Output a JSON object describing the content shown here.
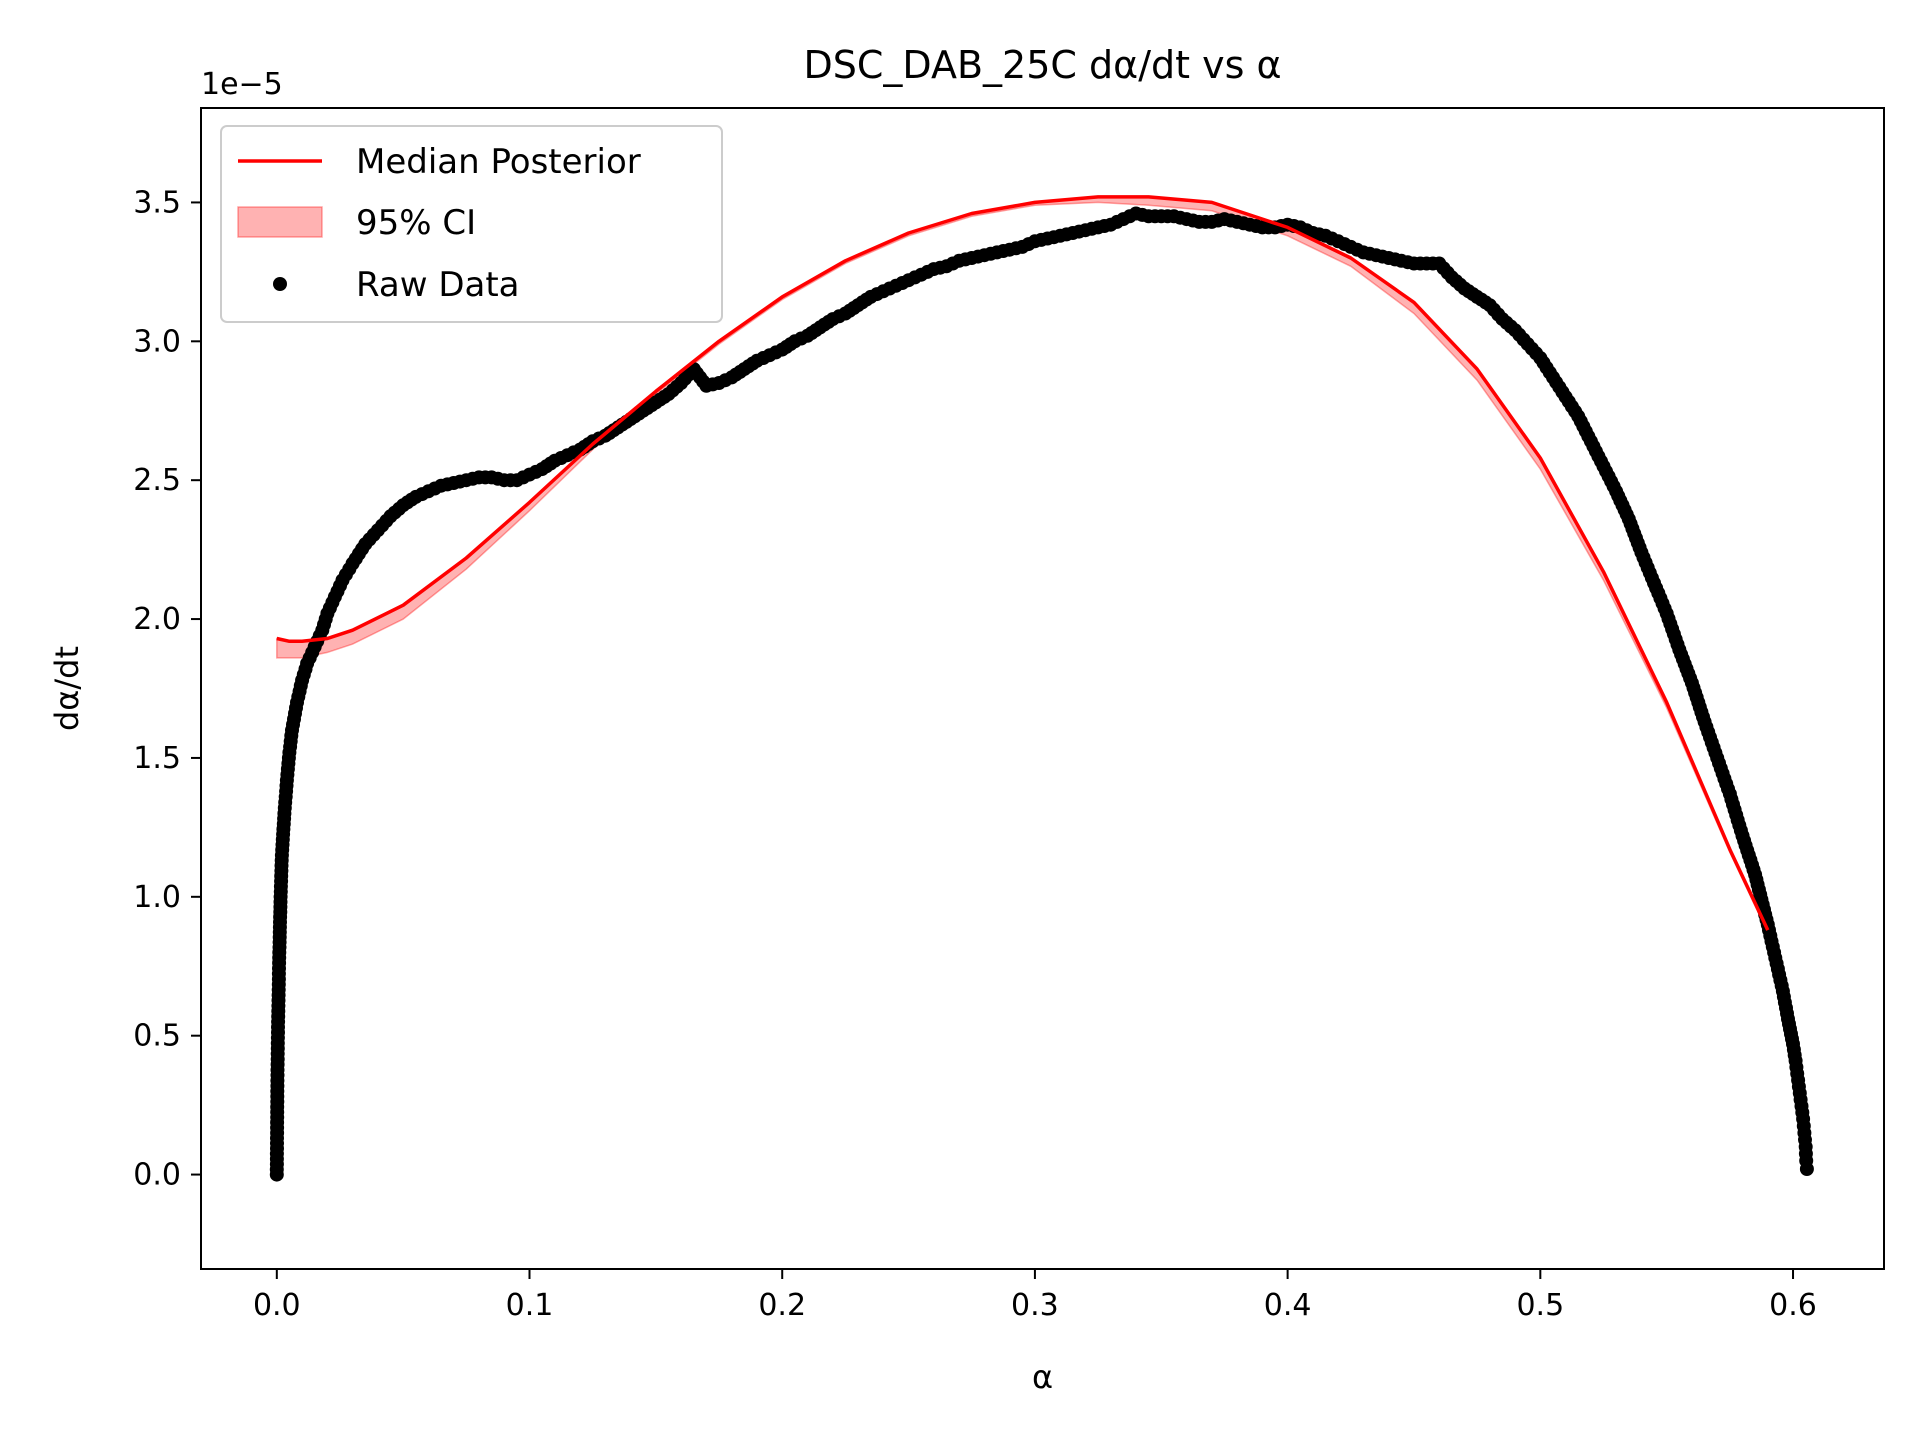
{
  "chart_data": {
    "type": "line",
    "title": "DSC_DAB_25C dα/dt vs α",
    "xlabel": "α",
    "ylabel": "dα/dt",
    "y_offset_label": "1e−5",
    "y_scale_factor": 1e-05,
    "xlim": [
      -0.03,
      0.636
    ],
    "ylim": [
      -0.34,
      3.84
    ],
    "x_ticks": [
      0.0,
      0.1,
      0.2,
      0.3,
      0.4,
      0.5,
      0.6
    ],
    "x_tick_labels": [
      "0.0",
      "0.1",
      "0.2",
      "0.3",
      "0.4",
      "0.5",
      "0.6"
    ],
    "y_ticks": [
      0.0,
      0.5,
      1.0,
      1.5,
      2.0,
      2.5,
      3.0,
      3.5
    ],
    "y_tick_labels": [
      "0.0",
      "0.5",
      "1.0",
      "1.5",
      "2.0",
      "2.5",
      "3.0",
      "3.5"
    ],
    "grid": false,
    "legend_position": "top-left",
    "colors": {
      "median": "#ff0000",
      "ci_fill": "#ff0000",
      "raw": "#000000"
    },
    "series": [
      {
        "name": "Median Posterior",
        "kind": "line",
        "x": [
          0.0,
          0.005,
          0.01,
          0.02,
          0.03,
          0.05,
          0.075,
          0.1,
          0.125,
          0.15,
          0.175,
          0.2,
          0.225,
          0.25,
          0.275,
          0.3,
          0.325,
          0.345,
          0.37,
          0.4,
          0.425,
          0.45,
          0.475,
          0.5,
          0.525,
          0.55,
          0.575,
          0.59
        ],
        "y": [
          1.93,
          1.92,
          1.92,
          1.93,
          1.96,
          2.05,
          2.22,
          2.42,
          2.63,
          2.82,
          3.0,
          3.16,
          3.29,
          3.39,
          3.46,
          3.5,
          3.52,
          3.52,
          3.5,
          3.41,
          3.3,
          3.14,
          2.9,
          2.58,
          2.17,
          1.7,
          1.17,
          0.88
        ]
      },
      {
        "name": "95% CI",
        "kind": "band",
        "x": [
          0.0,
          0.005,
          0.01,
          0.02,
          0.03,
          0.05,
          0.075,
          0.1,
          0.125,
          0.15,
          0.175,
          0.2,
          0.225,
          0.25,
          0.275,
          0.3,
          0.325,
          0.345,
          0.37,
          0.4,
          0.425,
          0.45,
          0.475,
          0.5,
          0.525,
          0.55,
          0.575,
          0.59
        ],
        "lower": [
          1.86,
          1.86,
          1.86,
          1.88,
          1.91,
          2.0,
          2.18,
          2.39,
          2.61,
          2.81,
          2.99,
          3.15,
          3.28,
          3.38,
          3.45,
          3.49,
          3.5,
          3.49,
          3.47,
          3.38,
          3.27,
          3.1,
          2.86,
          2.54,
          2.14,
          1.68,
          1.16,
          0.87
        ],
        "upper": [
          1.93,
          1.92,
          1.92,
          1.93,
          1.96,
          2.05,
          2.22,
          2.42,
          2.63,
          2.82,
          3.0,
          3.16,
          3.29,
          3.39,
          3.46,
          3.5,
          3.52,
          3.52,
          3.5,
          3.41,
          3.3,
          3.14,
          2.9,
          2.58,
          2.17,
          1.7,
          1.17,
          0.88
        ]
      },
      {
        "name": "Raw Data",
        "kind": "scatter",
        "x": [
          0.0,
          0.0002,
          0.0005,
          0.001,
          0.0015,
          0.002,
          0.003,
          0.004,
          0.005,
          0.006,
          0.008,
          0.01,
          0.012,
          0.015,
          0.018,
          0.02,
          0.023,
          0.026,
          0.03,
          0.035,
          0.04,
          0.045,
          0.05,
          0.055,
          0.06,
          0.065,
          0.07,
          0.075,
          0.08,
          0.085,
          0.09,
          0.095,
          0.1,
          0.105,
          0.11,
          0.115,
          0.12,
          0.125,
          0.13,
          0.135,
          0.14,
          0.145,
          0.15,
          0.155,
          0.16,
          0.163,
          0.165,
          0.17,
          0.175,
          0.18,
          0.185,
          0.19,
          0.195,
          0.2,
          0.205,
          0.21,
          0.215,
          0.22,
          0.225,
          0.23,
          0.235,
          0.24,
          0.245,
          0.25,
          0.255,
          0.26,
          0.265,
          0.27,
          0.275,
          0.28,
          0.285,
          0.29,
          0.295,
          0.3,
          0.305,
          0.31,
          0.315,
          0.32,
          0.325,
          0.33,
          0.335,
          0.34,
          0.345,
          0.35,
          0.355,
          0.36,
          0.365,
          0.37,
          0.375,
          0.38,
          0.385,
          0.39,
          0.395,
          0.4,
          0.405,
          0.41,
          0.415,
          0.42,
          0.425,
          0.43,
          0.435,
          0.44,
          0.445,
          0.45,
          0.455,
          0.46,
          0.465,
          0.47,
          0.475,
          0.48,
          0.485,
          0.49,
          0.495,
          0.5,
          0.505,
          0.51,
          0.515,
          0.52,
          0.525,
          0.53,
          0.535,
          0.54,
          0.545,
          0.55,
          0.555,
          0.56,
          0.565,
          0.57,
          0.575,
          0.58,
          0.585,
          0.59,
          0.593,
          0.596,
          0.598,
          0.6,
          0.601,
          0.602,
          0.603,
          0.604,
          0.6045,
          0.605,
          0.6052,
          0.6055
        ],
        "y": [
          0.0,
          0.3,
          0.55,
          0.8,
          1.0,
          1.15,
          1.3,
          1.42,
          1.52,
          1.6,
          1.7,
          1.78,
          1.84,
          1.9,
          1.96,
          2.02,
          2.08,
          2.14,
          2.2,
          2.27,
          2.32,
          2.37,
          2.41,
          2.44,
          2.46,
          2.48,
          2.49,
          2.5,
          2.51,
          2.51,
          2.5,
          2.5,
          2.52,
          2.54,
          2.57,
          2.59,
          2.61,
          2.64,
          2.66,
          2.69,
          2.72,
          2.75,
          2.78,
          2.81,
          2.85,
          2.88,
          2.9,
          2.84,
          2.85,
          2.87,
          2.9,
          2.93,
          2.95,
          2.97,
          3.0,
          3.02,
          3.05,
          3.08,
          3.1,
          3.13,
          3.16,
          3.18,
          3.2,
          3.22,
          3.24,
          3.26,
          3.27,
          3.29,
          3.3,
          3.31,
          3.32,
          3.33,
          3.34,
          3.36,
          3.37,
          3.38,
          3.39,
          3.4,
          3.41,
          3.42,
          3.44,
          3.46,
          3.45,
          3.45,
          3.45,
          3.44,
          3.43,
          3.43,
          3.44,
          3.43,
          3.42,
          3.41,
          3.41,
          3.42,
          3.41,
          3.39,
          3.38,
          3.36,
          3.34,
          3.32,
          3.31,
          3.3,
          3.29,
          3.28,
          3.28,
          3.28,
          3.23,
          3.19,
          3.16,
          3.13,
          3.08,
          3.04,
          2.99,
          2.94,
          2.87,
          2.8,
          2.73,
          2.64,
          2.55,
          2.46,
          2.36,
          2.24,
          2.13,
          2.02,
          1.89,
          1.77,
          1.63,
          1.5,
          1.37,
          1.22,
          1.08,
          0.9,
          0.78,
          0.66,
          0.56,
          0.47,
          0.41,
          0.34,
          0.27,
          0.2,
          0.15,
          0.1,
          0.05,
          0.02
        ]
      }
    ]
  }
}
